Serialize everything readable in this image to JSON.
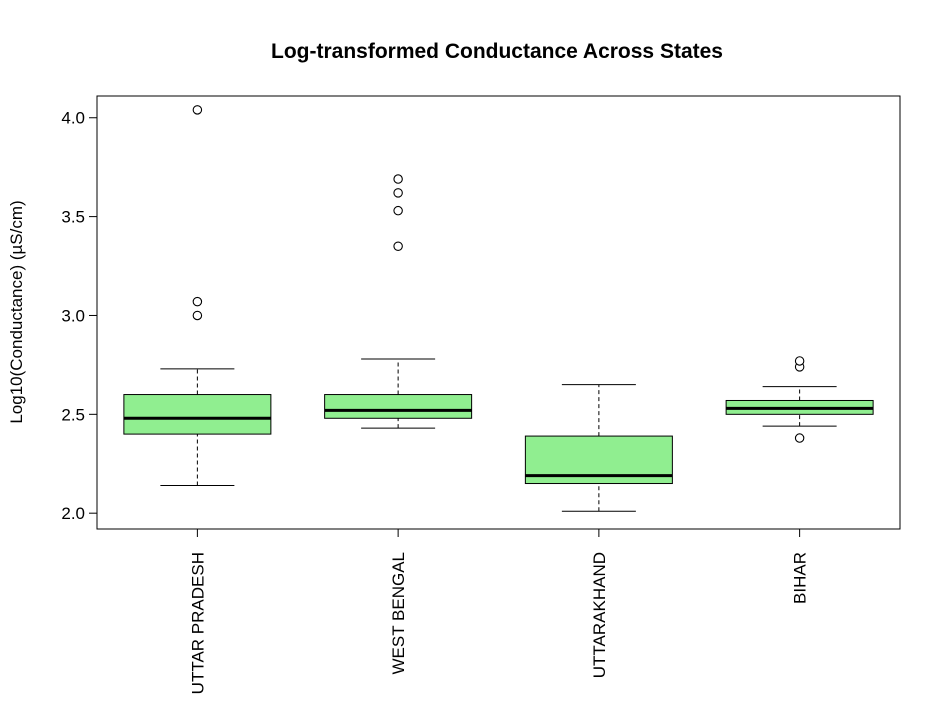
{
  "chart_data": {
    "type": "boxplot",
    "title": "Log-transformed Conductance Across States",
    "xlabel": "",
    "ylabel": "Log10(Conductance) (µS/cm)",
    "ylim": [
      1.92,
      4.11
    ],
    "yticks": [
      "2.0",
      "2.5",
      "3.0",
      "3.5",
      "4.0"
    ],
    "grid": false,
    "legend": "none",
    "box_color": "#90EE90",
    "categories": [
      "UTTAR PRADESH",
      "WEST BENGAL",
      "UTTARAKHAND",
      "BIHAR"
    ],
    "boxes": [
      {
        "category": "UTTAR PRADESH",
        "whisker_low": 2.14,
        "q1": 2.4,
        "median": 2.48,
        "q3": 2.6,
        "whisker_high": 2.73,
        "outliers": [
          3.0,
          3.07,
          4.04
        ]
      },
      {
        "category": "WEST BENGAL",
        "whisker_low": 2.43,
        "q1": 2.48,
        "median": 2.52,
        "q3": 2.6,
        "whisker_high": 2.78,
        "outliers": [
          3.35,
          3.53,
          3.62,
          3.69
        ]
      },
      {
        "category": "UTTARAKHAND",
        "whisker_low": 2.01,
        "q1": 2.15,
        "median": 2.19,
        "q3": 2.39,
        "whisker_high": 2.65,
        "outliers": []
      },
      {
        "category": "BIHAR",
        "whisker_low": 2.44,
        "q1": 2.5,
        "median": 2.53,
        "q3": 2.57,
        "whisker_high": 2.64,
        "outliers": [
          2.38,
          2.74,
          2.77
        ]
      }
    ]
  }
}
